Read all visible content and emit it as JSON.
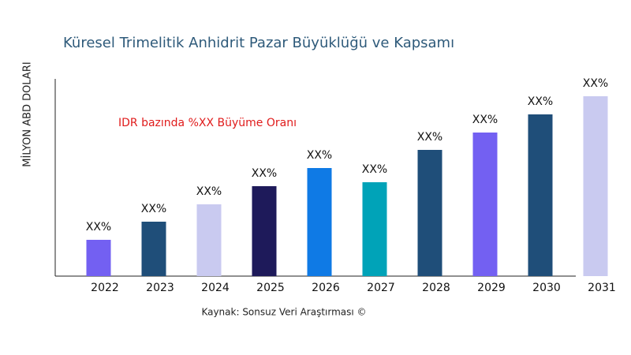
{
  "chart_data": {
    "type": "bar",
    "title": "Küresel Trimelitik Anhidrit Pazar Büyüklüğü ve Kapsamı",
    "y_label": "MİLYON ABD DOLARI",
    "annotation": "IDR bazında %XX Büyüme Oranı",
    "source": "Kaynak: Sonsuz Veri Araştırması ©",
    "categories": [
      "2022",
      "2023",
      "2024",
      "2025",
      "2026",
      "2027",
      "2028",
      "2029",
      "2030",
      "2031"
    ],
    "values": [
      46,
      69,
      91,
      114,
      137,
      119,
      160,
      182,
      205,
      228
    ],
    "value_labels": [
      "XX%",
      "XX%",
      "XX%",
      "XX%",
      "XX%",
      "XX%",
      "XX%",
      "XX%",
      "XX%",
      "XX%"
    ],
    "colors": [
      "#7360f2",
      "#1f4e79",
      "#c9caf0",
      "#1e1a5a",
      "#0f7ae5",
      "#00a3b8",
      "#1f4e79",
      "#7360f2",
      "#1f4e79",
      "#c9caf0"
    ],
    "ylim": [
      0,
      250
    ]
  }
}
